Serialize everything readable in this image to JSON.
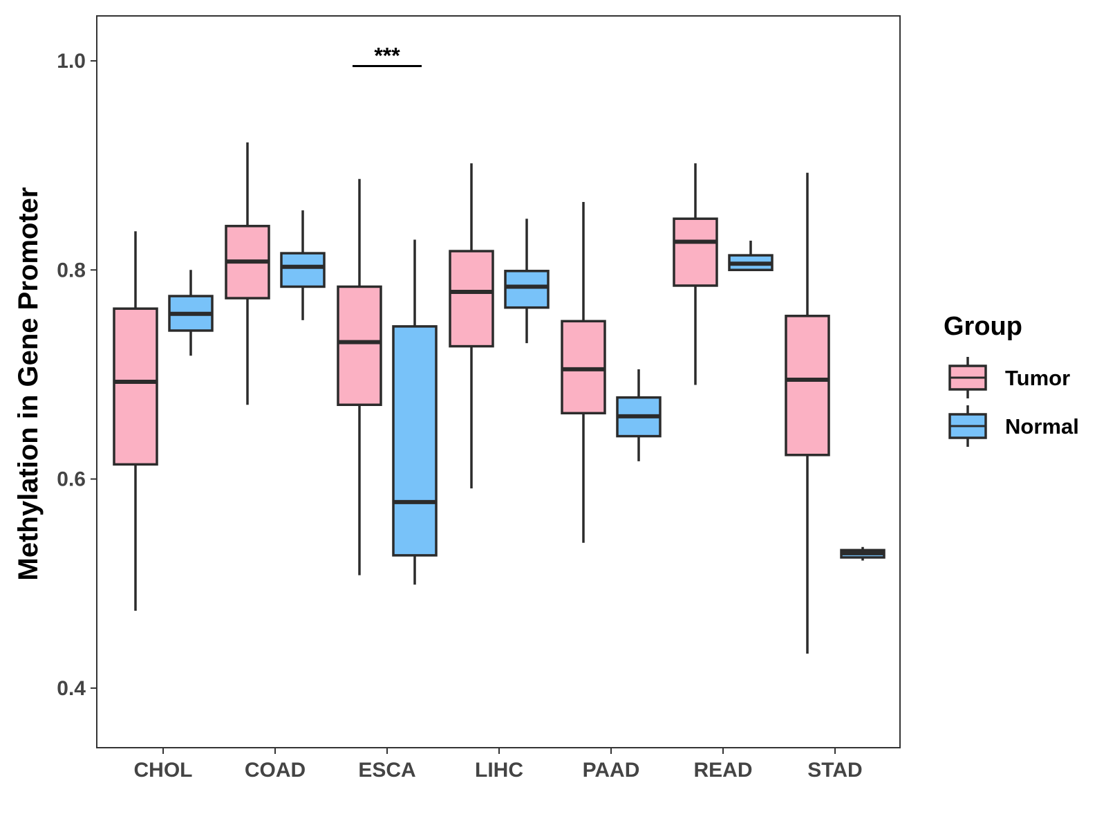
{
  "chart_data": {
    "type": "box",
    "ylabel": "Methylation in Gene Promoter",
    "xlabel": "",
    "ylim": [
      0.343,
      1.043
    ],
    "yticks": [
      0.4,
      0.6,
      0.8,
      1.0
    ],
    "ytick_labels": [
      "0.4",
      "0.6",
      "0.8",
      "1.0"
    ],
    "categories": [
      "CHOL",
      "COAD",
      "ESCA",
      "LIHC",
      "PAAD",
      "READ",
      "STAD"
    ],
    "series": [
      {
        "name": "Tumor",
        "color": "#FBB1C3",
        "boxes": [
          {
            "whisker_low": 0.474,
            "q1": 0.614,
            "median": 0.693,
            "q3": 0.763,
            "whisker_high": 0.837
          },
          {
            "whisker_low": 0.671,
            "q1": 0.773,
            "median": 0.808,
            "q3": 0.842,
            "whisker_high": 0.922
          },
          {
            "whisker_low": 0.508,
            "q1": 0.671,
            "median": 0.731,
            "q3": 0.784,
            "whisker_high": 0.887
          },
          {
            "whisker_low": 0.591,
            "q1": 0.727,
            "median": 0.779,
            "q3": 0.818,
            "whisker_high": 0.902
          },
          {
            "whisker_low": 0.539,
            "q1": 0.663,
            "median": 0.705,
            "q3": 0.751,
            "whisker_high": 0.865
          },
          {
            "whisker_low": 0.69,
            "q1": 0.785,
            "median": 0.827,
            "q3": 0.849,
            "whisker_high": 0.902
          },
          {
            "whisker_low": 0.433,
            "q1": 0.623,
            "median": 0.695,
            "q3": 0.756,
            "whisker_high": 0.893
          }
        ]
      },
      {
        "name": "Normal",
        "color": "#78C2F9",
        "boxes": [
          {
            "whisker_low": 0.718,
            "q1": 0.742,
            "median": 0.758,
            "q3": 0.775,
            "whisker_high": 0.8
          },
          {
            "whisker_low": 0.752,
            "q1": 0.784,
            "median": 0.803,
            "q3": 0.816,
            "whisker_high": 0.857
          },
          {
            "whisker_low": 0.499,
            "q1": 0.527,
            "median": 0.578,
            "q3": 0.746,
            "whisker_high": 0.829
          },
          {
            "whisker_low": 0.73,
            "q1": 0.764,
            "median": 0.784,
            "q3": 0.799,
            "whisker_high": 0.849
          },
          {
            "whisker_low": 0.617,
            "q1": 0.641,
            "median": 0.66,
            "q3": 0.678,
            "whisker_high": 0.705
          },
          {
            "whisker_low": 0.8,
            "q1": 0.8,
            "median": 0.806,
            "q3": 0.814,
            "whisker_high": 0.828
          },
          {
            "whisker_low": 0.522,
            "q1": 0.525,
            "median": 0.529,
            "q3": 0.532,
            "whisker_high": 0.535
          }
        ]
      }
    ],
    "annotations": [
      {
        "text": "***",
        "category": "ESCA",
        "y": 0.995
      }
    ],
    "legend": {
      "title": "Group",
      "position": "right",
      "entries": [
        "Tumor",
        "Normal"
      ]
    },
    "grid": false
  }
}
